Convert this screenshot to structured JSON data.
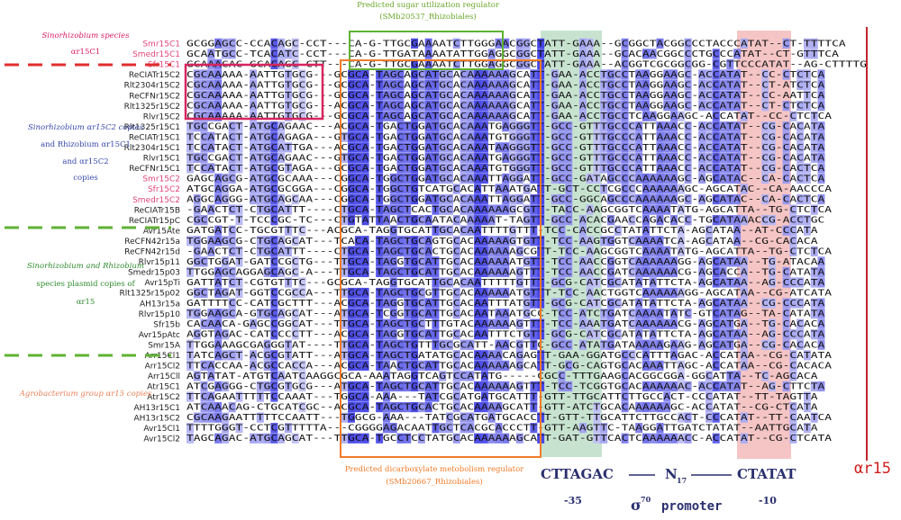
{
  "annotations": {
    "top": [
      "Predicted sugar utilization regulator",
      "(SMb20537_Rhizobiales)"
    ],
    "bottom": [
      "Predicted dicarboxylate metobolism regulator",
      "(SMb20667_Rhizobiales)"
    ],
    "left_groups": [
      {
        "color": "#d81b60",
        "lines": [
          "Sinorhizobium species",
          "αr15C1"
        ]
      },
      {
        "color": "#3949ab",
        "lines": [
          "Sinorhizobium αr15C2 copies",
          "and Rhizobium αr15C1",
          "and αr15C2",
          "copies"
        ]
      },
      {
        "color": "#2e8b2e",
        "lines": [
          "Sinorhizobium and Rhizobium",
          "species plasmid copies of",
          "αr15"
        ]
      },
      {
        "color": "#e8825a",
        "lines": [
          "Agrobacterium group αr15 copies"
        ]
      }
    ],
    "motif": {
      "box35": "CTTAGAC",
      "spacer": "N",
      "spacer_sub": "17",
      "box10": "CTATAT",
      "label35": "-35",
      "label10": "-10",
      "sigma": "σ",
      "sigma_sup": "70",
      "promoter": "promoter",
      "gene": "αr15"
    }
  },
  "alignment": {
    "rows": [
      {
        "name": "Smr15C1",
        "name_color": "#e0457b",
        "sequence": "GCGGAGCC-CCACAGC-CCT---CA-G-TTGCGAAAATCTTGGGAACGGCTATT-GAAA--GCGGCTACGGCCCTACCCATAT--CT-TTTTCA"
      },
      {
        "name": "Smedr15C1",
        "name_color": "#e0457b",
        "sequence": "GCAATGCC-TCACATC-CCT---CA-G-TTGATAAAATATTGGAGGCGGCTATT-GAAA--GCACAACGGCCCTGCCCATAT--CT-GTTTCA"
      },
      {
        "name": "Sfr15C1",
        "name_color": "#e0457b",
        "sequence": "GCAAACAC-GCACAGC-CTT---CA-G-TTGCGAAAATCTTGGAGGCGGCTATT-GAAA--ACGGTCGCGGCGG-CGTTCCCATAT--AG-CTTTTG"
      },
      {
        "name": "ReCIATr15C2",
        "name_color": "#222222",
        "sequence": "CGCAAAAA-AATTGTGCG---GCGCA-TAGCAGCATGCACAAAAAAGCATT-GAA-ACCTGCCTAAGGAAGC-ACCATAT--CC-CTCTCA"
      },
      {
        "name": "Rlt2304r15C2",
        "name_color": "#222222",
        "sequence": "CGCAAAAA-AATTGTGCG---GCGCA-TAGCAGCATGCACAAAAAAGCATT-GAA-ACCTGCCTAAGGAAGC-ACCATAT--CT-ATCTCA"
      },
      {
        "name": "ReCFNr15C2",
        "name_color": "#222222",
        "sequence": "CGCAAAAA-AATTGTGCG---GCGCA-TAGCAGCATGCACAAAAAAGCATT-GAA-ACCTGCCTAAGGAAGC-ACCATAT--CC-AATTCA"
      },
      {
        "name": "Rlt1325r15C2",
        "name_color": "#222222",
        "sequence": "CGCAAAAA-AATTGTGCG---ACGCA-TAGCAGCATGCACAAAAAAGCATT-GAA-ACCTGCCTAAGGAAGC-ACCATAT--CT-CTCTCA"
      },
      {
        "name": "Rlvr15C2",
        "name_color": "#222222",
        "sequence": "CGCAAAAA-AATTGTGCG---GCGCA-TAGCAGCATGCACAAAAAAGCATT-GAA-ACCTGCCTCAAGGAAGC-ACCATAT--CC-CTCTCA"
      },
      {
        "name": "Rlt1325r15C1",
        "name_color": "#222222",
        "sequence": "TGCCGACT-ATGCAGAAC---ACGCA-TGACTGGATGCACAAATGAGGGTT-GCC-GTTTGCCCATTAAACC-ACCATAT--CG-CACATA"
      },
      {
        "name": "ReCIATr15C1",
        "name_color": "#222222",
        "sequence": "TCCATACT-ATGCAGAGA---GTGCA-TGACTGGATGCACAAATGTGGGTT-GCC-GTTTGCCCATTAAACC-ACCATAT--CG-CACATA"
      },
      {
        "name": "Rlt2304r15C1",
        "name_color": "#222222",
        "sequence": "TCCATACT-ATGCATTGA---ACGCA-TGACTGGATGCACAAATAAGGGTT-GCC-GTTTGCCCATTAAACC-ACCATAT--CG-CACATA"
      },
      {
        "name": "Rlvr15C1",
        "name_color": "#222222",
        "sequence": "TGCCGACT-ATGCAGAAC---GTGCA-TGACTGGATGCACAAATGAGGGTT-GCC-GTTTGCCCATTAAACC-ACCATAT--CG-CACATA"
      },
      {
        "name": "ReCFNr15C1",
        "name_color": "#222222",
        "sequence": "TCCATACT-ATGCGTAGA---GCGCA-TGACTGGATGCACAAATGTGGGTT-GCC-GTTTGCCCATTAAACC-ACCATAT--CG-CACTCA"
      },
      {
        "name": "Smr15C2",
        "name_color": "#e0457b",
        "sequence": "GAGCAGCG-ATGCGCAAA---CGGCA-TGGCTGGATGCACAAATTAGGATT-GCC-GATAGCCCAAAAAAGC-AGCATAC--CA-CACTCA"
      },
      {
        "name": "Sfr15C2",
        "name_color": "#e0457b",
        "sequence": "ATGCAGGA-ATGCGCGGA---CGGCA-TGGCTGTCATGCACATTAAATGATT-GCT-CCTCGCCCAAAAAAGC-AGCATAC--CA-AACCCA"
      },
      {
        "name": "Smedr15C2",
        "name_color": "#e0457b",
        "sequence": "AGGCAGGG-ATGCAGCAA---CGGCA-TGGCTGGATGCACAAATTAGGATT-GCC-GGCAGCCCAAAAAAGC-AGCATAC--CA-CACTCA"
      },
      {
        "name": "ReCIATr15B",
        "name_color": "#222222",
        "sequence": "-GAACTCT-CTGCATTT----CTGCA-TAGCTCACTGCACAAAAAAGCGTT-TACC-AAGCGGTCAAAATATG-AGCATTA--TG-CTCTCA"
      },
      {
        "name": "ReCIATr15pC",
        "name_color": "#222222",
        "sequence": "CGCCGT-T-TCCCGC-TC---CTGTATTAACTGCAATACAAAAAT-TAGTT-GCC-ACACGAACCAGACACC-TGCATAAACCG-ACCTGC"
      },
      {
        "name": "Avr15Ate",
        "name_color": "#222222",
        "sequence": "GATGATCC-TGCGTTTC---ACGCA-TAGGTGCATTGCACAATTTTGTTT-TCC-CACCGCCTATATTCTA-AGCATAA--AT-CCCATA"
      },
      {
        "name": "ReCFN42r15a",
        "name_color": "#222222",
        "sequence": "TGGAAGCG-CTGCAGCAT---TCACA-TAGCTGCAGTGCACAAAAAGTGTT-TCC-AAGTGGTCAAAATCA-AGCATAA--CG-CACACA"
      },
      {
        "name": "ReCFN42r15d",
        "name_color": "#222222",
        "sequence": "-GAACTCT-CTGCATTT----CTGCA-TAGCTGCACTGCACAAAAAAGCGTT-TCC-AAGCGGTCAAAATATG-AGCATTA--TG-CTCTCA"
      },
      {
        "name": "Rlvr15p11",
        "name_color": "#222222",
        "sequence": "GGCTGGAT-GATCCGCTG---TTGCA-TAGGTGCATTGCACAAAAAATGTT-TCC-AACCGGTCAAAAAAGG-AGCATAA--TG-ATACAA"
      },
      {
        "name": "Smedr15p03",
        "name_color": "#222222",
        "sequence": "TTGGAGCAGGAGCAGC-A---TTGCA-TAGCTGCATTGCACAAAAAAGTTT-TCC-AACCGATCAAAAAACG-AGCACCA--TG-CATATA"
      },
      {
        "name": "Avr15pTi",
        "name_color": "#222222",
        "sequence": "GATTATCT-CGTGTTTC---GCGCA-TAGGTGCATTGCACAATTTTTGTTT-GCG-CATCGCATATATTCTA-AGCATAA--AG-CCCATA"
      },
      {
        "name": "Rlt1325r15p02",
        "name_color": "#222222",
        "sequence": "GGCTAGAT-GGTCCGCCA---TTGCA-TAGCTGCGTTGCACAAAAAATGTTT-TCC-AACTGGTCAAAAAAGG-AGCATAA--CG-ATCATA"
      },
      {
        "name": "AH13r15a",
        "name_color": "#222222",
        "sequence": "GATTTTCC-CATCGCTTT---ACGCA-TAGGTGCATTGCACAATTTATGTT-GCG-CATCGCATATATTCTA-AGCATAA--CG-CCCATA"
      },
      {
        "name": "Rlvr15p10",
        "name_color": "#222222",
        "sequence": "TGGAAGCA-GTGCAGCAT---ATGCA-TCGGTGCATTGCACAATAAATGCC-TCC-ATCTGATCAAAATATC-GTCATAG--TA-CATATA"
      },
      {
        "name": "Sfr15b",
        "name_color": "#222222",
        "sequence": "CACAACA-GAGCCGGCAT---TTGCA-TAGCTGCTTTGTACAAAAAAGTTT-TCC-AAATGATCAAAAAACG-AGCATGA--TG-CACACA"
      },
      {
        "name": "Avr15pAtc",
        "name_color": "#222222",
        "sequence": "AGGTAGAC-CATCCCCTT---ACGCA-TAGGTGCATTGCACAATTTCTGTT-GCG-CATCGCATATATTCTA-AGCATAA--AG-CCCATA"
      },
      {
        "name": "Smr15A",
        "name_color": "#222222",
        "sequence": "TTGGAAAGCGAGGGTAT----TTGCA-TAGCTGTTTGCGCATT-AACGTTC-GCC-ATATGATAAAAAGAAG-AGCATGA--CG-CACACA"
      },
      {
        "name": "Arr15Cl1",
        "name_color": "#222222",
        "sequence": "TATCAGCT-ACGCGTATT---ATGCA-TAGCTGATATGCACAAAACAGAGTT-GAA-GGATGCCCATTTAGAC-ACCATAA--CG-CATATA"
      },
      {
        "name": "Arr15Cl2",
        "name_color": "#222222",
        "sequence": "TTCACCAA-ACGCCACCA---ACGCA-TAACTGCATTGCACAAAAAAGCATT-GCG-CAGTGCACAAATTAGC-ACCATAA--CG-CACACA"
      },
      {
        "name": "Arr15Cll",
        "name_color": "#222222",
        "sequence": "AGTATAT-ATGTCAATCAAGGCGCA-AAATAGGTCAGTCCATATG-----CGCC-TTTGAAGCACGGCGGA-GGCATTA--TC-AGCACA"
      },
      {
        "name": "Atr15C1",
        "name_color": "#222222",
        "sequence": "ATCGAGGG-CTGCGTGCG---ATGCA-TAGCTGCATTGCACAAAAAAGTTT-TCC-TCGGTGCACAAAAAAC-ACCATAT--AG-CTTCTA"
      },
      {
        "name": "Atr15C2",
        "name_color": "#222222",
        "sequence": "TTCAGAATTTTTCCAAAT---TGGCA-AAA---TATCGCATGATGCATTT-GTT-TTGCATTCTTGCCACT-CCCATAT--TT-TAGTTA"
      },
      {
        "name": "AH13r15C1",
        "name_color": "#222222",
        "sequence": "ATCAAACAG-CTGCATCGC--ACGCA-TAGCTGCACTGCACAAAAGCATT-GTT-ATCTGCACAAAAAAGC-ACCATAT--CG-CTCATA"
      },
      {
        "name": "AH13r15C2",
        "name_color": "#222222",
        "sequence": "CGCAAGAATTTTTCCAATT---TGGCG-AAA---TATCGCATGATGCACCTT-GTT-TTGCATTCTTGCCACT-CCCATAT--TT-CAATCA"
      },
      {
        "name": "Avr15Cl1",
        "name_color": "#222222",
        "sequence": "TTTTGGGT-CCTCGTTTTTA---CGGGGAGACAATTGCTCACGCACCCTT-GTT-AAGTTC-TAAGGATTGATCTATAT--AATTGCATA"
      },
      {
        "name": "Avr15Cl2",
        "name_color": "#222222",
        "sequence": "TAGCAGAC-ATGCAGCAT---TTGCA-TGCCTCCTATGCACAAAAAAGCATT-GAT-GTTCACTCAAAAAACC-ACCATAT--CG-CTCATA"
      }
    ]
  }
}
